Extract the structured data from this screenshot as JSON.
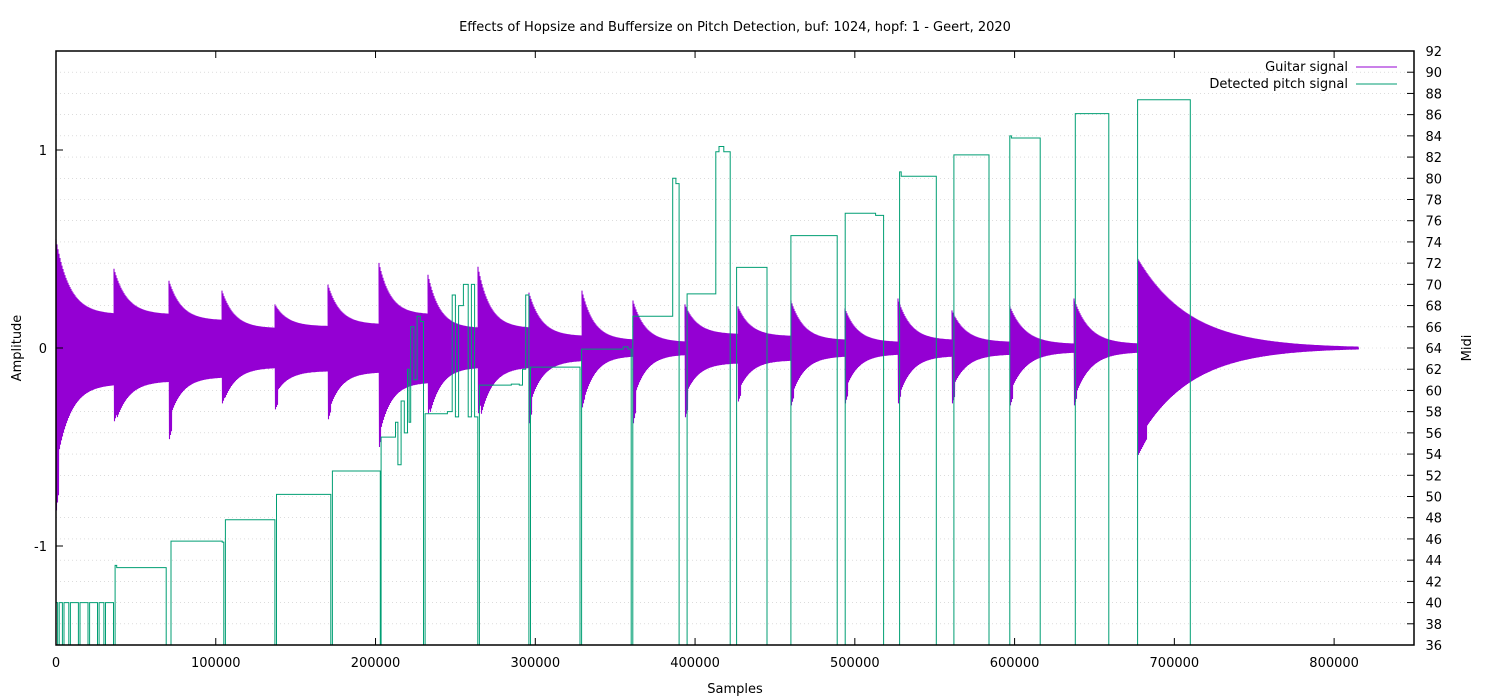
{
  "chart_data": {
    "type": "line",
    "title": "Effects of Hopsize and Buffersize on Pitch Detection, buf: 1024, hopf: 1 - Geert, 2020",
    "xlabel": "Samples",
    "ylabel": "Amplitude",
    "y2label": "Midi",
    "xlim": [
      0,
      850000
    ],
    "ylim": [
      -1.5,
      1.5
    ],
    "y2lim": [
      36,
      92
    ],
    "x_ticks": [
      0,
      100000,
      200000,
      300000,
      400000,
      500000,
      600000,
      700000,
      800000
    ],
    "y_ticks": [
      -1,
      0,
      1
    ],
    "y2_ticks": [
      36,
      38,
      40,
      42,
      44,
      46,
      48,
      50,
      52,
      54,
      56,
      58,
      60,
      62,
      64,
      66,
      68,
      70,
      72,
      74,
      76,
      78,
      80,
      82,
      84,
      86,
      88,
      90,
      92
    ],
    "grid": true,
    "legend_position": "top-right",
    "series": [
      {
        "name": "Guitar signal",
        "color": "#9400d3",
        "axis": "left",
        "kind": "decaying_notes",
        "notes": [
          {
            "x0": 0,
            "x1": 36000,
            "a0": 0.55,
            "a1": 0.17,
            "min": -0.82
          },
          {
            "x0": 36000,
            "x1": 71000,
            "a0": 0.4,
            "a1": 0.17,
            "min": -0.37
          },
          {
            "x0": 71000,
            "x1": 104000,
            "a0": 0.34,
            "a1": 0.14,
            "min": -0.46
          },
          {
            "x0": 104000,
            "x1": 137000,
            "a0": 0.29,
            "a1": 0.1,
            "min": -0.28
          },
          {
            "x0": 137000,
            "x1": 170000,
            "a0": 0.22,
            "a1": 0.11,
            "min": -0.31
          },
          {
            "x0": 170000,
            "x1": 202000,
            "a0": 0.32,
            "a1": 0.12,
            "min": -0.36
          },
          {
            "x0": 202000,
            "x1": 233000,
            "a0": 0.43,
            "a1": 0.17,
            "min": -0.5
          },
          {
            "x0": 233000,
            "x1": 264000,
            "a0": 0.37,
            "a1": 0.1,
            "min": -0.33
          },
          {
            "x0": 264000,
            "x1": 296000,
            "a0": 0.41,
            "a1": 0.1,
            "min": -0.33
          },
          {
            "x0": 296000,
            "x1": 329000,
            "a0": 0.28,
            "a1": 0.06,
            "min": -0.38
          },
          {
            "x0": 329000,
            "x1": 361000,
            "a0": 0.29,
            "a1": 0.04,
            "min": -0.3
          },
          {
            "x0": 361000,
            "x1": 394000,
            "a0": 0.24,
            "a1": 0.03,
            "min": -0.38
          },
          {
            "x0": 394000,
            "x1": 427000,
            "a0": 0.22,
            "a1": 0.07,
            "min": -0.35
          },
          {
            "x0": 427000,
            "x1": 460000,
            "a0": 0.21,
            "a1": 0.06,
            "min": -0.27
          },
          {
            "x0": 460000,
            "x1": 494000,
            "a0": 0.24,
            "a1": 0.04,
            "min": -0.29
          },
          {
            "x0": 494000,
            "x1": 527000,
            "a0": 0.2,
            "a1": 0.03,
            "min": -0.28
          },
          {
            "x0": 527000,
            "x1": 561000,
            "a0": 0.25,
            "a1": 0.04,
            "min": -0.28
          },
          {
            "x0": 561000,
            "x1": 597000,
            "a0": 0.19,
            "a1": 0.03,
            "min": -0.28
          },
          {
            "x0": 597000,
            "x1": 637000,
            "a0": 0.21,
            "a1": 0.02,
            "min": -0.29
          },
          {
            "x0": 637000,
            "x1": 677000,
            "a0": 0.25,
            "a1": 0.02,
            "min": -0.29
          },
          {
            "x0": 677000,
            "x1": 815000,
            "a0": 0.45,
            "a1": 0.0,
            "min": -0.54
          }
        ]
      },
      {
        "name": "Detected pitch signal",
        "color": "#009e73",
        "axis": "right",
        "kind": "step",
        "points": [
          [
            0,
            40
          ],
          [
            1000,
            36
          ],
          [
            2000,
            40
          ],
          [
            4000,
            36
          ],
          [
            5000,
            40
          ],
          [
            8000,
            36
          ],
          [
            9000,
            40
          ],
          [
            14000,
            36
          ],
          [
            15000,
            40
          ],
          [
            20000,
            36
          ],
          [
            21000,
            40
          ],
          [
            26000,
            36
          ],
          [
            27000,
            40
          ],
          [
            30000,
            36
          ],
          [
            31000,
            40
          ],
          [
            35000,
            40
          ],
          [
            36000,
            36
          ],
          [
            37000,
            43.5
          ],
          [
            38000,
            43.3
          ],
          [
            68000,
            43.3
          ],
          [
            69000,
            36
          ],
          [
            72000,
            45.8
          ],
          [
            104000,
            45.7
          ],
          [
            105000,
            36
          ],
          [
            106000,
            47.8
          ],
          [
            136000,
            47.8
          ],
          [
            137000,
            36
          ],
          [
            138000,
            50.2
          ],
          [
            171000,
            50.2
          ],
          [
            172000,
            36
          ],
          [
            173000,
            52.4
          ],
          [
            202000,
            52.4
          ],
          [
            203000,
            36
          ],
          [
            203500,
            55.6
          ],
          [
            212000,
            55.6
          ],
          [
            212500,
            57
          ],
          [
            214000,
            53
          ],
          [
            216000,
            59
          ],
          [
            218000,
            56
          ],
          [
            220000,
            62
          ],
          [
            221000,
            57
          ],
          [
            222000,
            66
          ],
          [
            224000,
            61
          ],
          [
            226000,
            67
          ],
          [
            228000,
            66.5
          ],
          [
            230000,
            36
          ],
          [
            231000,
            57.8
          ],
          [
            245000,
            58.0
          ],
          [
            248000,
            69
          ],
          [
            250000,
            57.5
          ],
          [
            252000,
            68
          ],
          [
            255000,
            70
          ],
          [
            258000,
            57.5
          ],
          [
            260000,
            70
          ],
          [
            262000,
            57.5
          ],
          [
            264000,
            36
          ],
          [
            265000,
            60.5
          ],
          [
            285000,
            60.6
          ],
          [
            290000,
            60.5
          ],
          [
            292000,
            62
          ],
          [
            294000,
            69
          ],
          [
            296000,
            36
          ],
          [
            297000,
            62.2
          ],
          [
            298000,
            62.2
          ],
          [
            327000,
            62.2
          ],
          [
            328000,
            36
          ],
          [
            329000,
            63.9
          ],
          [
            355000,
            64.1
          ],
          [
            358000,
            63.9
          ],
          [
            360000,
            36
          ],
          [
            361000,
            67.0
          ],
          [
            385000,
            67.0
          ],
          [
            386000,
            80
          ],
          [
            388000,
            79.5
          ],
          [
            390000,
            36
          ],
          [
            395000,
            69.1
          ],
          [
            412000,
            69.1
          ],
          [
            413000,
            82.5
          ],
          [
            415000,
            83
          ],
          [
            418000,
            82.5
          ],
          [
            422000,
            36
          ],
          [
            426000,
            71.6
          ],
          [
            444000,
            71.6
          ],
          [
            445000,
            36
          ],
          [
            460000,
            74.6
          ],
          [
            488000,
            74.6
          ],
          [
            489000,
            36
          ],
          [
            494000,
            76.7
          ],
          [
            512000,
            76.7
          ],
          [
            513000,
            76.5
          ],
          [
            518000,
            36
          ],
          [
            528000,
            80.6
          ],
          [
            529000,
            80.2
          ],
          [
            550000,
            80.2
          ],
          [
            551000,
            36
          ],
          [
            562000,
            82.2
          ],
          [
            583000,
            82.2
          ],
          [
            584000,
            36
          ],
          [
            597000,
            84.0
          ],
          [
            598000,
            83.8
          ],
          [
            615000,
            83.8
          ],
          [
            616000,
            36
          ],
          [
            638000,
            86.1
          ],
          [
            658000,
            86.1
          ],
          [
            659000,
            36
          ],
          [
            677000,
            87.4
          ],
          [
            709000,
            87.4
          ],
          [
            710000,
            36
          ]
        ]
      }
    ]
  }
}
